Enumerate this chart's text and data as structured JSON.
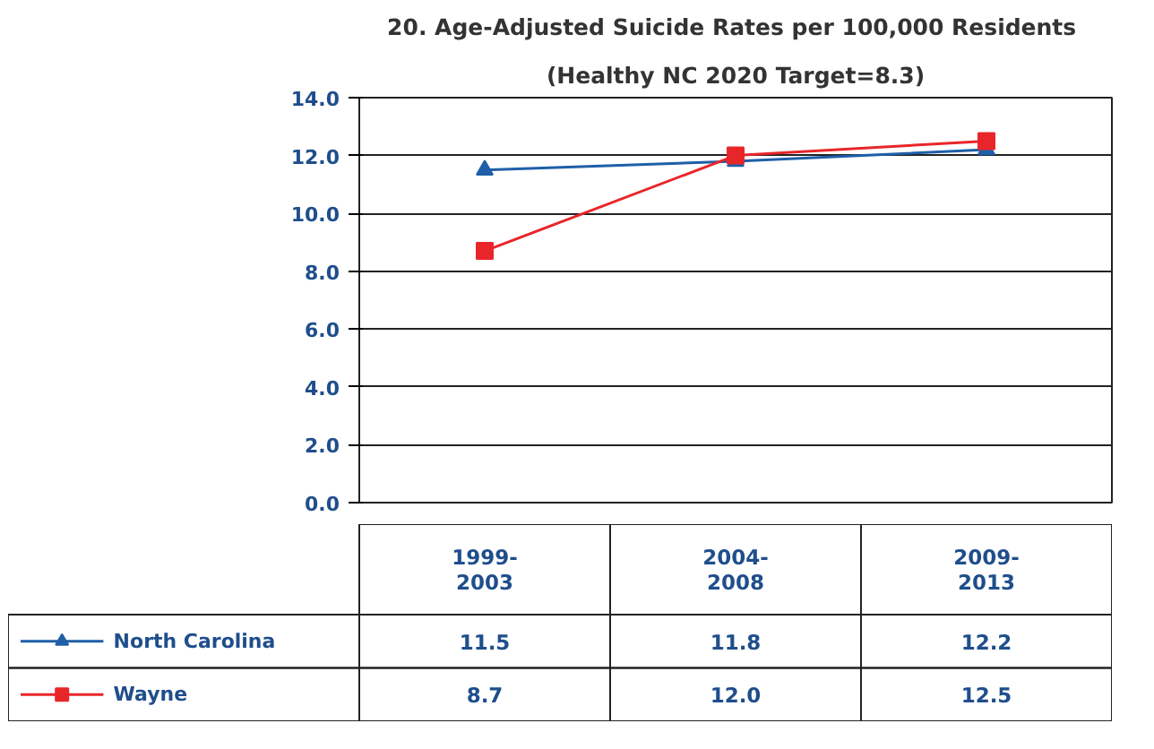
{
  "chart_data": {
    "type": "line",
    "title": "20. Age-Adjusted  Suicide Rates per 100,000 Residents",
    "subtitle": "(Healthy NC 2020 Target=8.3)",
    "categories": [
      "1999-\n2003",
      "2004-\n2008",
      "2009-\n2013"
    ],
    "series": [
      {
        "name": "North Carolina",
        "color": "#1f5fa8",
        "marker": "triangle",
        "values": [
          11.5,
          11.8,
          12.2
        ],
        "value_labels": [
          "11.5",
          "11.8",
          "12.2"
        ]
      },
      {
        "name": "Wayne",
        "color": "#e8262a",
        "marker": "square",
        "values": [
          8.7,
          12.0,
          12.5
        ],
        "value_labels": [
          "8.7",
          "12.0",
          "12.5"
        ]
      }
    ],
    "ylim": [
      0,
      14
    ],
    "yticks": [
      {
        "value": 0,
        "label": "0.0"
      },
      {
        "value": 2,
        "label": "2.0"
      },
      {
        "value": 4,
        "label": "4.0"
      },
      {
        "value": 6,
        "label": "6.0"
      },
      {
        "value": 8,
        "label": "8.0"
      },
      {
        "value": 10,
        "label": "10.0"
      },
      {
        "value": 12,
        "label": "12.0"
      },
      {
        "value": 14,
        "label": "14.0"
      }
    ],
    "grid": "y",
    "legend": "bottom",
    "line_style": "solid"
  }
}
